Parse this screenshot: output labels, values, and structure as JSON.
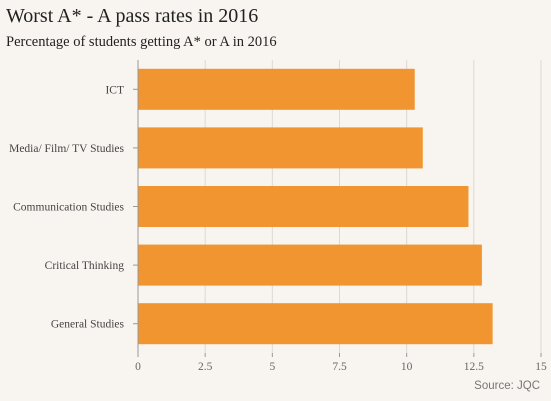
{
  "chart_data": {
    "type": "bar",
    "orientation": "horizontal",
    "title": "Worst A* - A pass rates in 2016",
    "subtitle": "Percentage of students getting A* or A in 2016",
    "categories": [
      "ICT",
      "Media/ Film/ TV Studies",
      "Communication Studies",
      "Critical Thinking",
      "General Studies"
    ],
    "values": [
      10.3,
      10.6,
      12.3,
      12.8,
      13.2
    ],
    "xlim": [
      0,
      15
    ],
    "xticks": [
      "0",
      "2.5",
      "5",
      "7.5",
      "10",
      "12.5",
      "15"
    ],
    "grid": true,
    "bar_color": "#f0952f",
    "source": "Source: JQC"
  }
}
